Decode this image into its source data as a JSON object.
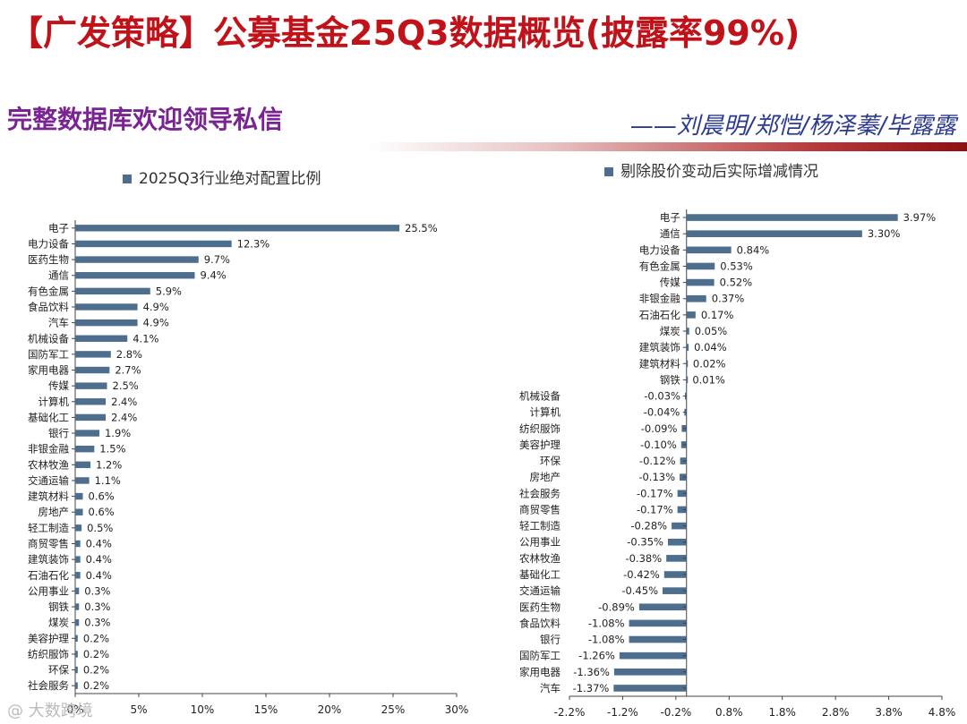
{
  "header": {
    "title": "【广发策略】公募基金25Q3数据概览(披露率99%)",
    "subtitle": "完整数据库欢迎领导私信",
    "authors": "——刘晨明/郑恺/杨泽蓁/毕露露"
  },
  "colors": {
    "bar": "#4e6e8e",
    "title": "#c1121a",
    "subtitle": "#7a2392",
    "authors": "#2b3990"
  },
  "watermark": "@ 大数跨境",
  "chart_data": [
    {
      "type": "bar",
      "orientation": "horizontal",
      "legend": "2025Q3行业绝对配置比例",
      "categories": [
        "电子",
        "电力设备",
        "医药生物",
        "通信",
        "有色金属",
        "食品饮料",
        "汽车",
        "机械设备",
        "国防军工",
        "家用电器",
        "传媒",
        "计算机",
        "基础化工",
        "银行",
        "非银金融",
        "农林牧渔",
        "交通运输",
        "建筑材料",
        "房地产",
        "轻工制造",
        "商贸零售",
        "建筑装饰",
        "石油石化",
        "公用事业",
        "钢铁",
        "煤炭",
        "美容护理",
        "纺织服饰",
        "环保",
        "社会服务"
      ],
      "values": [
        25.5,
        12.3,
        9.7,
        9.4,
        5.9,
        4.9,
        4.9,
        4.1,
        2.8,
        2.7,
        2.5,
        2.4,
        2.4,
        1.9,
        1.5,
        1.2,
        1.1,
        0.6,
        0.6,
        0.5,
        0.4,
        0.4,
        0.4,
        0.3,
        0.3,
        0.3,
        0.2,
        0.2,
        0.2,
        0.2
      ],
      "labels": [
        "25.5%",
        "12.3%",
        "9.7%",
        "9.4%",
        "5.9%",
        "4.9%",
        "4.9%",
        "4.1%",
        "2.8%",
        "2.7%",
        "2.5%",
        "2.4%",
        "2.4%",
        "1.9%",
        "1.5%",
        "1.2%",
        "1.1%",
        "0.6%",
        "0.6%",
        "0.5%",
        "0.4%",
        "0.4%",
        "0.4%",
        "0.3%",
        "0.3%",
        "0.3%",
        "0.2%",
        "0.2%",
        "0.2%",
        "0.2%"
      ],
      "xlim": [
        0,
        30
      ],
      "xticks": [
        0,
        5,
        10,
        15,
        20,
        25,
        30
      ],
      "xtick_labels": [
        "0%",
        "5%",
        "10%",
        "15%",
        "20%",
        "25%",
        "30%"
      ]
    },
    {
      "type": "bar",
      "orientation": "horizontal",
      "legend": "剔除股价变动后实际增减情况",
      "categories": [
        "电子",
        "通信",
        "电力设备",
        "有色金属",
        "传媒",
        "非银金融",
        "石油石化",
        "煤炭",
        "建筑装饰",
        "建筑材料",
        "钢铁",
        "机械设备",
        "计算机",
        "纺织服饰",
        "美容护理",
        "环保",
        "房地产",
        "社会服务",
        "商贸零售",
        "轻工制造",
        "公用事业",
        "农林牧渔",
        "基础化工",
        "交通运输",
        "医药生物",
        "食品饮料",
        "银行",
        "国防军工",
        "家用电器",
        "汽车"
      ],
      "values": [
        3.97,
        3.3,
        0.84,
        0.53,
        0.52,
        0.37,
        0.17,
        0.05,
        0.04,
        0.02,
        0.01,
        -0.03,
        -0.04,
        -0.09,
        -0.1,
        -0.12,
        -0.13,
        -0.17,
        -0.17,
        -0.28,
        -0.35,
        -0.38,
        -0.42,
        -0.45,
        -0.89,
        -1.08,
        -1.08,
        -1.26,
        -1.36,
        -1.37
      ],
      "labels": [
        "3.97%",
        "3.30%",
        "0.84%",
        "0.53%",
        "0.52%",
        "0.37%",
        "0.17%",
        "0.05%",
        "0.04%",
        "0.02%",
        "0.01%",
        "-0.03%",
        "-0.04%",
        "-0.09%",
        "-0.10%",
        "-0.12%",
        "-0.13%",
        "-0.17%",
        "-0.17%",
        "-0.28%",
        "-0.35%",
        "-0.38%",
        "-0.42%",
        "-0.45%",
        "-0.89%",
        "-1.08%",
        "-1.08%",
        "-1.26%",
        "-1.36%",
        "-1.37%"
      ],
      "xlim": [
        -2.2,
        4.8
      ],
      "xticks": [
        -2.2,
        -1.2,
        -0.2,
        0.8,
        1.8,
        2.8,
        3.8,
        4.8
      ],
      "xtick_labels": [
        "-2.2%",
        "-1.2%",
        "-0.2%",
        "0.8%",
        "1.8%",
        "2.8%",
        "3.8%",
        "4.8%"
      ]
    }
  ]
}
